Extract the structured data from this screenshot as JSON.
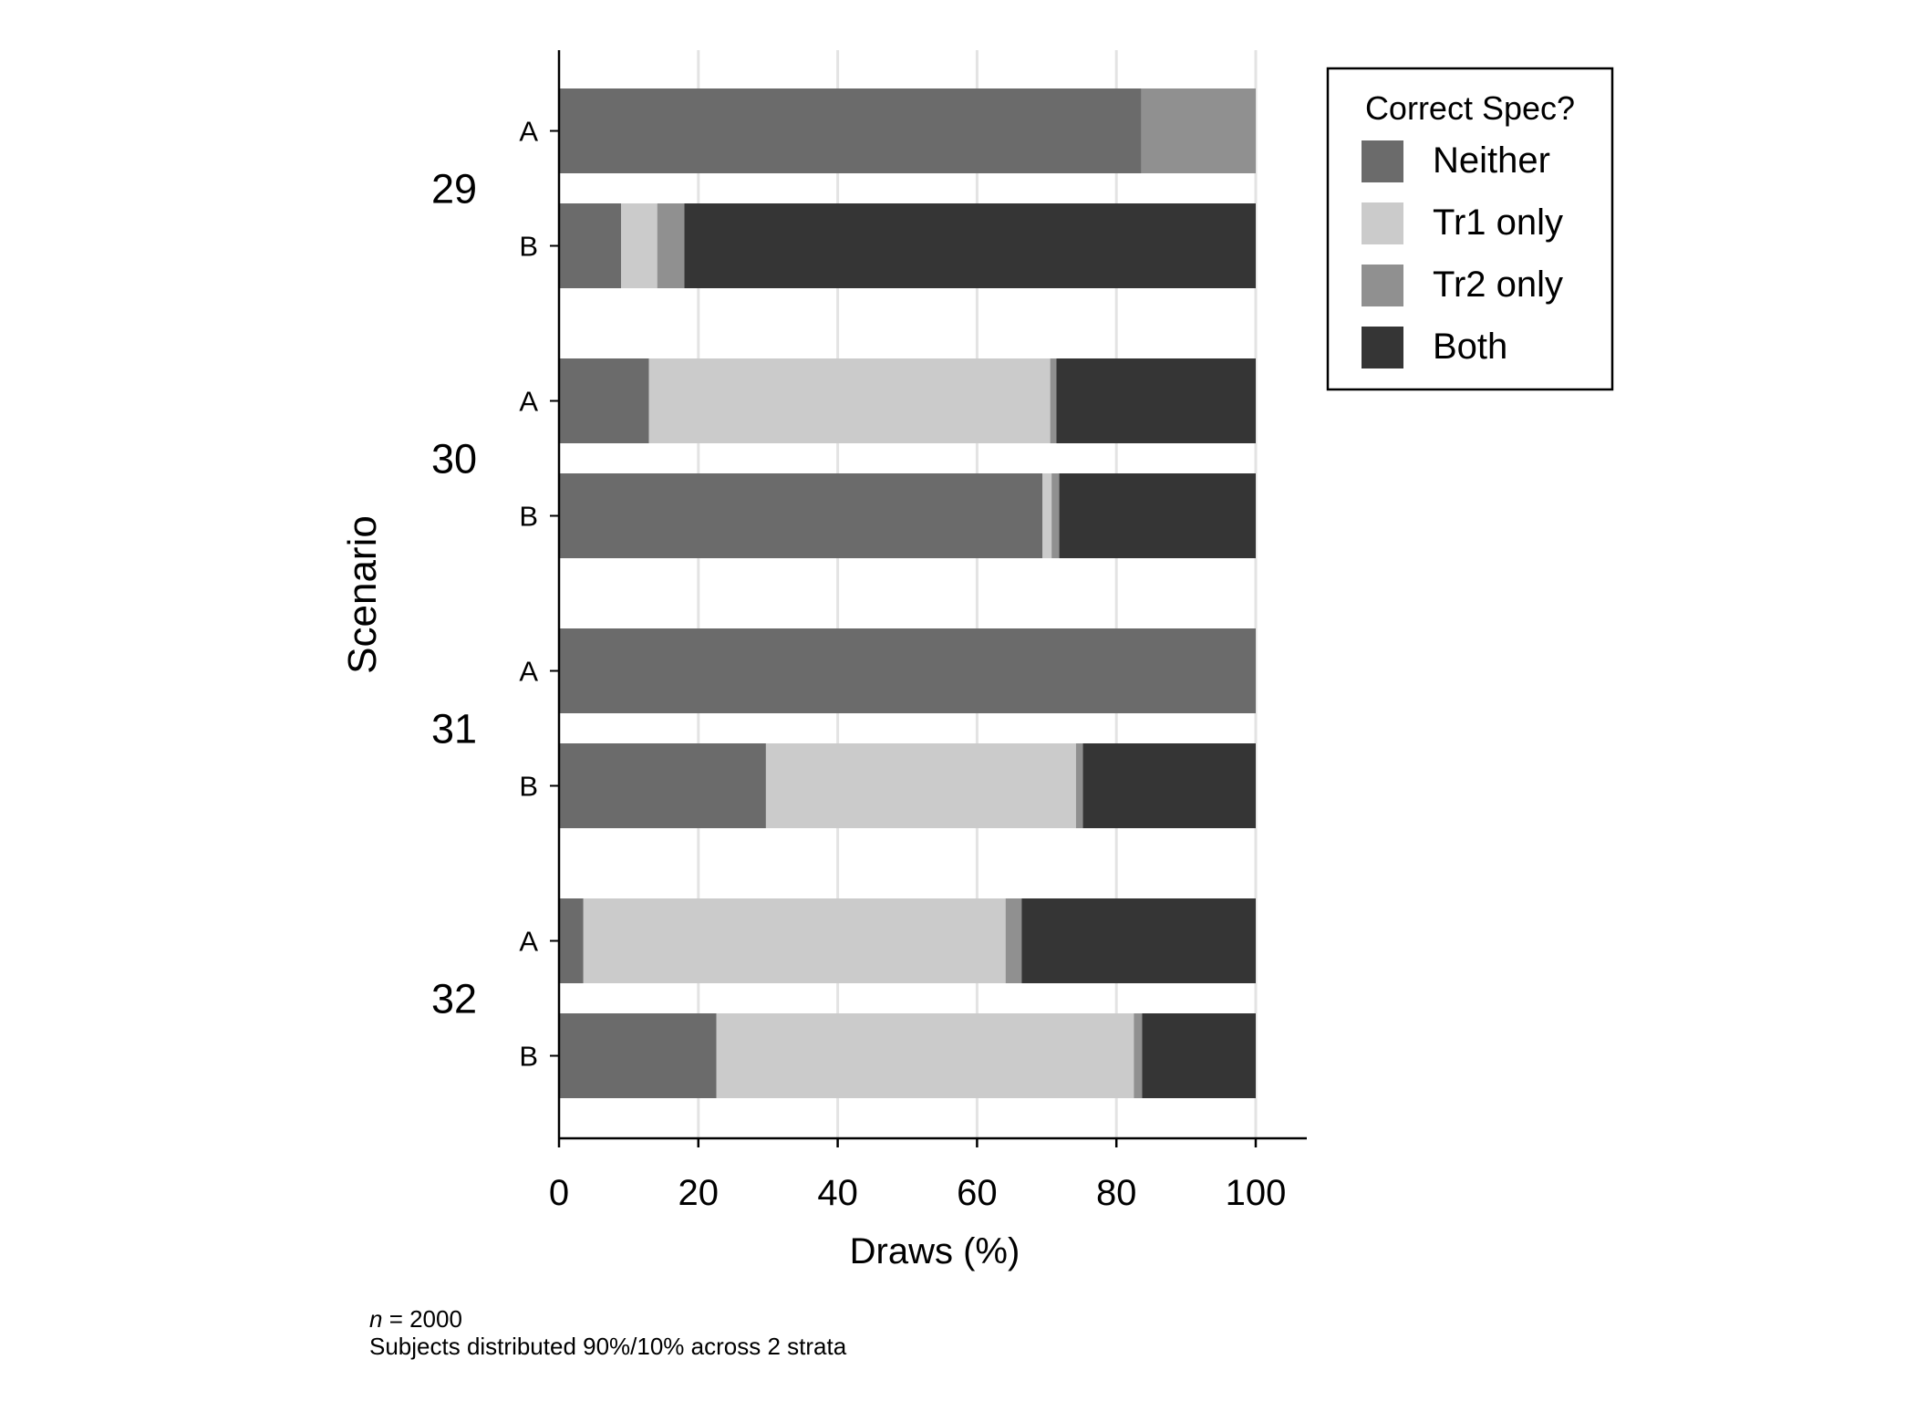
{
  "chart_data": {
    "type": "bar",
    "orientation": "horizontal",
    "stacked": true,
    "xlabel": "Draws (%)",
    "ylabel": "Scenario",
    "xlim": [
      0,
      107
    ],
    "xticks": [
      0,
      20,
      40,
      60,
      80,
      100
    ],
    "grid": true,
    "legend_position": "top-right",
    "legend": {
      "title": "Correct Spec?",
      "entries": [
        "Neither",
        "Tr1 only",
        "Tr2 only",
        "Both"
      ]
    },
    "groups": [
      {
        "label": "29",
        "categories": [
          "A",
          "B"
        ]
      },
      {
        "label": "30",
        "categories": [
          "A",
          "B"
        ]
      },
      {
        "label": "31",
        "categories": [
          "A",
          "B"
        ]
      },
      {
        "label": "32",
        "categories": [
          "A",
          "B"
        ]
      }
    ],
    "series": [
      {
        "name": "Neither",
        "color": "#6b6b6b",
        "values": [
          83.6,
          8.9,
          12.9,
          69.4,
          100.0,
          29.7,
          3.5,
          22.6
        ]
      },
      {
        "name": "Tr1 only",
        "color": "#cbcbcb",
        "values": [
          0.0,
          5.2,
          57.6,
          1.3,
          0.0,
          44.5,
          60.6,
          59.9
        ]
      },
      {
        "name": "Tr2 only",
        "color": "#909090",
        "values": [
          16.4,
          3.9,
          0.9,
          1.1,
          0.0,
          1.0,
          2.3,
          1.2
        ]
      },
      {
        "name": "Both",
        "color": "#353535",
        "values": [
          0.0,
          82.0,
          28.6,
          28.2,
          0.0,
          24.8,
          33.6,
          16.3
        ]
      }
    ]
  },
  "notes": {
    "n_label": "n",
    "n_value": " = 2000",
    "subjects": "Subjects distributed 90%/10% across 2 strata"
  }
}
